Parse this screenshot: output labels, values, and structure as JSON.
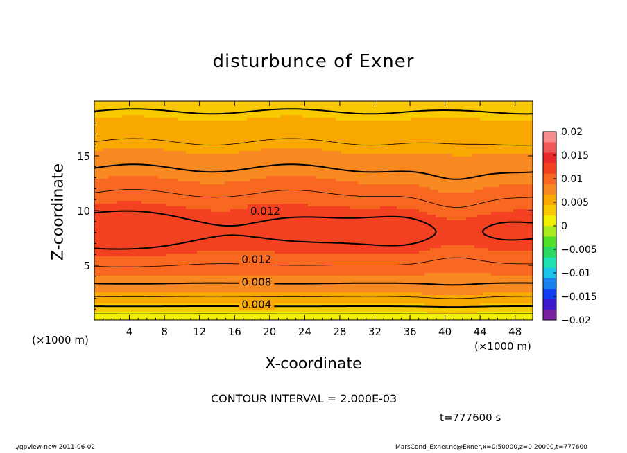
{
  "chart_data": {
    "type": "heatmap",
    "title": "disturbunce of Exner",
    "xlabel": "X-coordinate",
    "ylabel": "Z-coordinate",
    "x_unit": "(×1000 m)",
    "xlim": [
      0,
      50
    ],
    "ylim": [
      0,
      20
    ],
    "x_ticks": [
      4,
      8,
      12,
      16,
      20,
      24,
      28,
      32,
      36,
      40,
      44,
      48
    ],
    "y_ticks": [
      5,
      10,
      15
    ],
    "colorbar": {
      "range": [
        -0.02,
        0.02
      ],
      "tick_values": [
        0.02,
        0.015,
        0.01,
        0.005,
        0,
        -0.005,
        -0.01,
        -0.015,
        -0.02
      ],
      "tick_labels": [
        "0.02",
        "0.015",
        "0.01",
        "0.005",
        "0",
        "−0.005",
        "−0.01",
        "−0.015",
        "−0.02"
      ],
      "colors": [
        "#7a1fa0",
        "#3a1acc",
        "#0f3df0",
        "#1a82f0",
        "#1cc4ec",
        "#1ee0b0",
        "#28d860",
        "#50e028",
        "#a8ec20",
        "#f0f000",
        "#f8c800",
        "#f8a800",
        "#f88820",
        "#f86820",
        "#f24020",
        "#ea2a2a",
        "#f05858",
        "#f88c8c"
      ]
    },
    "contour_interval_text": "CONTOUR INTERVAL = 2.000E-03",
    "contour_labels": [
      {
        "text": "0.012",
        "x": 19.5,
        "z": 10.0
      },
      {
        "text": "0.012",
        "x": 18.5,
        "z": 5.6
      },
      {
        "text": "0.008",
        "x": 18.5,
        "z": 3.5
      },
      {
        "text": "0.004",
        "x": 18.5,
        "z": 1.5
      }
    ],
    "time_text": "t=777600 s"
  },
  "footer": {
    "left": "./gpview-new   2011-06-02",
    "right": "MarsCond_Exner.nc@Exner,x=0:50000,z=0:20000,t=777600"
  }
}
